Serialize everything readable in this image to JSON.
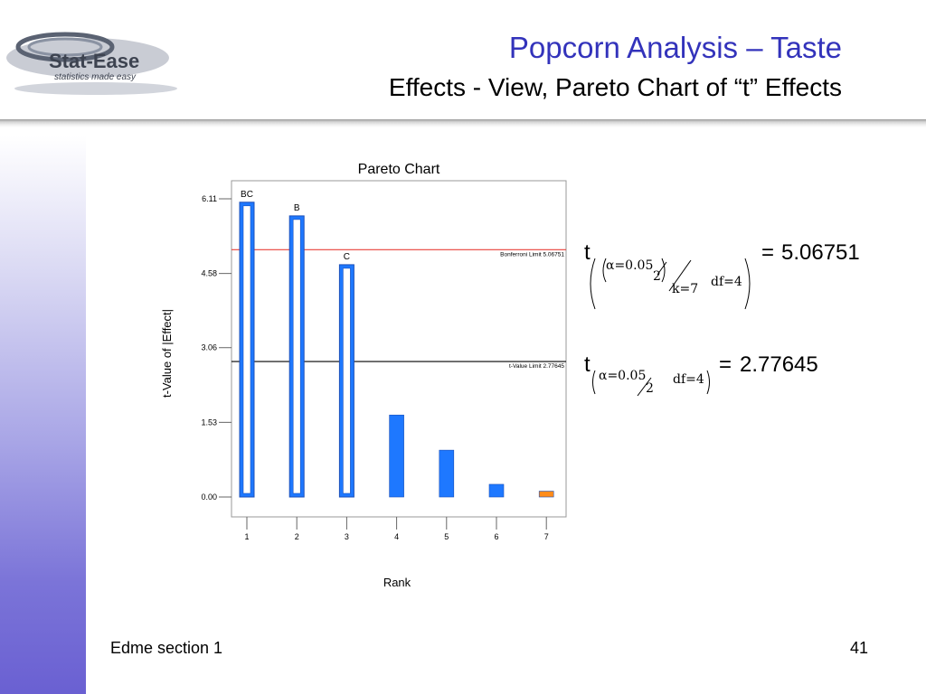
{
  "header": {
    "logo_text": "Stat-Ease",
    "logo_tagline": "statistics made easy",
    "title": "Popcorn Analysis – Taste",
    "subtitle": "Effects - View, Pareto Chart of “t” Effects"
  },
  "footer": {
    "section": "Edme section 1",
    "page_number": "41"
  },
  "formulas": {
    "bonferroni": {
      "t": "t",
      "alpha": "α−0.05",
      "two": "2",
      "k": "k−7",
      "df": "df−4",
      "equals": "−",
      "value": "5.06751"
    },
    "tvalue": {
      "t": "t",
      "alpha": "α−0.05",
      "two": "2",
      "df": "df−4",
      "equals": "−",
      "value": "2.77645"
    }
  },
  "chart_data": {
    "type": "bar",
    "title": "Pareto Chart",
    "xlabel": "Rank",
    "ylabel": "t-Value of |Effect|",
    "categories": [
      "1",
      "2",
      "3",
      "4",
      "5",
      "6",
      "7"
    ],
    "values": [
      6.04,
      5.76,
      4.76,
      1.68,
      0.96,
      0.26,
      0.12
    ],
    "bar_labels": [
      "BC",
      "B",
      "C",
      "",
      "",
      "",
      ""
    ],
    "bar_colors": [
      "#1e78ff",
      "#1e78ff",
      "#1e78ff",
      "#1e78ff",
      "#1e78ff",
      "#1e78ff",
      "#ff8c1a"
    ],
    "hollow": [
      true,
      true,
      true,
      false,
      false,
      false,
      false
    ],
    "y_ticks": [
      "0.00",
      "1.53",
      "3.06",
      "4.58",
      "6.11"
    ],
    "y_tick_values": [
      0,
      1.53,
      3.06,
      4.58,
      6.11
    ],
    "ylim": [
      0,
      6.11
    ],
    "reference_lines": [
      {
        "label": "Bonferroni Limit 5.06751",
        "value": 5.06751,
        "color": "#e8403a"
      },
      {
        "label": "t-Value Limit 2.77645",
        "value": 2.77645,
        "color": "#000000"
      }
    ],
    "grid": false
  }
}
